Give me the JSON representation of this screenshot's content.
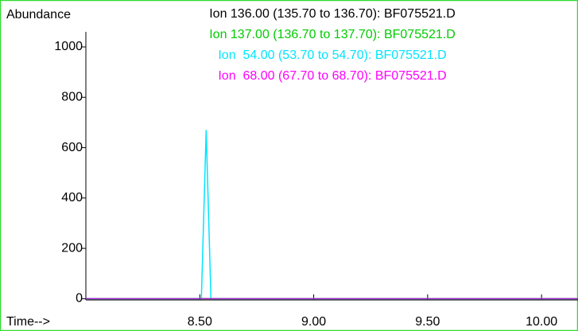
{
  "chart_data": {
    "type": "line",
    "titles": [
      {
        "text": "Ion 136.00 (135.70 to 136.70): BF075521.D",
        "color": "#000000"
      },
      {
        "text": "Ion 137.00 (136.70 to 137.70): BF075521.D",
        "color": "#00cc00"
      },
      {
        "text": "Ion  54.00 (53.70 to 54.70): BF075521.D",
        "color": "#00e5ff"
      },
      {
        "text": "Ion  68.00 (67.70 to 68.70): BF075521.D",
        "color": "#ff00ff"
      }
    ],
    "ylabel": "Abundance",
    "xlabel": "Time-->",
    "series": [
      {
        "name": "Ion 136.00",
        "color": "#000000",
        "x": [
          8.0,
          10.16
        ],
        "values": [
          0,
          0
        ]
      },
      {
        "name": "Ion 137.00",
        "color": "#00cc00",
        "x": [
          8.0,
          10.16
        ],
        "values": [
          0,
          0
        ]
      },
      {
        "name": "Ion 54.00",
        "color": "#00e5ff",
        "x": [
          8.0,
          8.507,
          8.528,
          8.549,
          10.16
        ],
        "values": [
          0,
          0,
          670,
          0,
          0
        ]
      },
      {
        "name": "Ion 68.00",
        "color": "#aa22cc",
        "x": [
          8.0,
          10.16
        ],
        "values": [
          0,
          0
        ]
      }
    ],
    "xlim": [
      8.0,
      10.16
    ],
    "xticks": [
      {
        "value": 8.5,
        "label": "8.50"
      },
      {
        "value": 9,
        "label": "9.00"
      },
      {
        "value": 9.5,
        "label": "9.50"
      },
      {
        "value": 10,
        "label": "10.00"
      }
    ],
    "ylim": [
      -5,
      1060
    ],
    "yticks": [
      0,
      200,
      400,
      600,
      800,
      1000
    ]
  }
}
